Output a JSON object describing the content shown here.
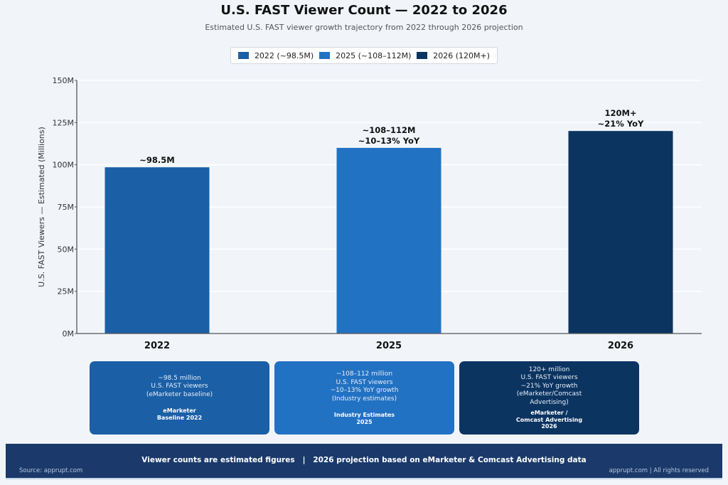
{
  "title": "U.S. FAST Viewer Count — 2022 to 2026",
  "subtitle": "Estimated U.S. FAST viewer growth trajectory from 2022 through 2026 projection",
  "legend": [
    {
      "label": "2022 (~98.5M)",
      "color": "#1b5fa6"
    },
    {
      "label": "2025 (~108–112M)",
      "color": "#2272c3"
    },
    {
      "label": "2026 (120M+)",
      "color": "#0b3461"
    }
  ],
  "chart_data": {
    "type": "bar",
    "title": "U.S. FAST Viewer Count — 2022 to 2026",
    "xlabel": "",
    "ylabel": "U.S. FAST Viewers — Estimated (Millions)",
    "categories": [
      "2022",
      "2025",
      "2026"
    ],
    "values": [
      98.5,
      110,
      120
    ],
    "colors": [
      "#1b5fa6",
      "#2272c3",
      "#0b3461"
    ],
    "bar_labels": [
      [
        "~98.5M"
      ],
      [
        "~108–112M",
        "~10–13% YoY"
      ],
      [
        "120M+",
        "~21% YoY"
      ]
    ],
    "ylim": [
      0,
      150
    ],
    "yticks": [
      0,
      25,
      50,
      75,
      100,
      125,
      150
    ],
    "ytick_labels": [
      "0M",
      "25M",
      "50M",
      "75M",
      "100M",
      "125M",
      "150M"
    ],
    "grid": true,
    "legend_position": "top-center"
  },
  "cards": [
    {
      "desc": "~98.5 million\nU.S. FAST viewers\n(eMarketer baseline)",
      "source": "eMarketer\nBaseline 2022",
      "color": "#1b5fa6"
    },
    {
      "desc": "~108–112 million\nU.S. FAST viewers\n~10–13% YoY growth\n(Industry estimates)",
      "source": "Industry Estimates\n2025",
      "color": "#2272c3"
    },
    {
      "desc": "120+ million\nU.S. FAST viewers\n~21% YoY growth\n(eMarketer/Comcast\nAdvertising)",
      "source": "eMarketer /\nComcast Advertising\n2026",
      "color": "#0b3461"
    }
  ],
  "footer": {
    "main": "Viewer counts are estimated figures   |   2026 projection based on eMarketer & Comcast Advertising data",
    "source_left": "Source: apprupt.com",
    "source_right": "apprupt.com  |  All rights reserved"
  }
}
